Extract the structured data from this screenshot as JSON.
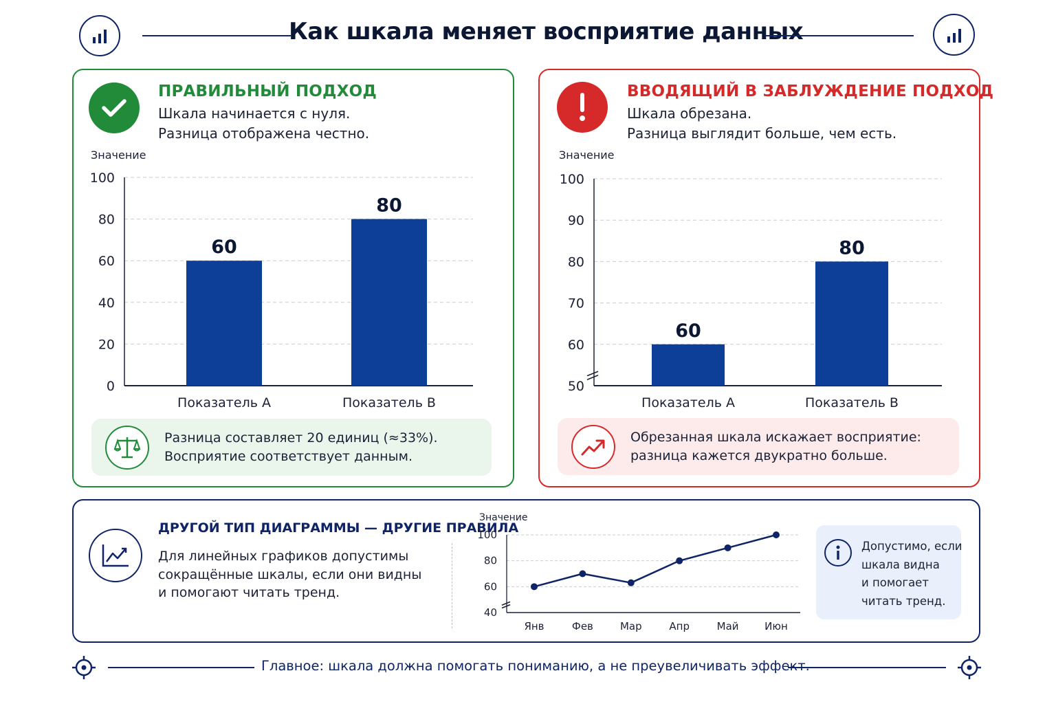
{
  "page": {
    "title": "Как шкала меняет восприятие данных",
    "footer": "Главное: шкала должна помогать пониманию, а не преувеличивать эффект."
  },
  "colors": {
    "navy": "#0e2466",
    "bar": "#0d3f98",
    "good": "#218b3a",
    "bad": "#d62a2a",
    "good_bg": "#eaf5eb",
    "bad_bg": "#fdebec",
    "info_bg": "#e9f0fb"
  },
  "icons": {
    "header": "bar-chart-icon",
    "good_badge": "checkmark-icon",
    "bad_badge": "exclamation-icon",
    "good_callout": "scales-icon",
    "bad_callout": "trend-up-icon",
    "bottom": "line-chart-icon",
    "info": "info-icon",
    "footer": "crosshair-icon"
  },
  "good_panel": {
    "heading": "ПРАВИЛЬНЫЙ ПОДХОД",
    "line1": "Шкала начинается с нуля.",
    "line2": "Разница отображена честно.",
    "callout_line1": "Разница составляет 20 единиц (≈33%).",
    "callout_line2": "Восприятие соответствует данным."
  },
  "bad_panel": {
    "heading": "ВВОДЯЩИЙ В ЗАБЛУЖДЕНИЕ ПОДХОД",
    "line1": "Шкала обрезана.",
    "line2": "Разница выглядит больше, чем есть.",
    "callout_line1": "Обрезанная шкала искажает восприятие:",
    "callout_line2": "разница кажется двукратно больше."
  },
  "bottom_panel": {
    "heading": "ДРУГОЙ ТИП ДИАГРАММЫ — ДРУГИЕ ПРАВИЛА",
    "line1": "Для линейных графиков допустимы",
    "line2": "сокращённые шкалы, если они видны",
    "line3": "и помогают читать тренд.",
    "info_line1": "Допустимо, если",
    "info_line2": "шкала видна",
    "info_line3": "и помогает",
    "info_line4": "читать тренд."
  },
  "chart_data": [
    {
      "type": "bar",
      "ylabel": "Значение",
      "categories": [
        "Показатель А",
        "Показатель В"
      ],
      "values": [
        60,
        80
      ],
      "ylim": [
        0,
        100
      ],
      "yticks": [
        0,
        20,
        40,
        60,
        80,
        100
      ],
      "grid": true,
      "axis_break": false
    },
    {
      "type": "bar",
      "ylabel": "Значение",
      "categories": [
        "Показатель А",
        "Показатель В"
      ],
      "values": [
        60,
        80
      ],
      "ylim": [
        50,
        100
      ],
      "yticks": [
        50,
        60,
        70,
        80,
        90,
        100
      ],
      "grid": true,
      "axis_break": true
    },
    {
      "type": "line",
      "ylabel": "Значение",
      "categories": [
        "Янв",
        "Фев",
        "Мар",
        "Апр",
        "Май",
        "Июн"
      ],
      "values": [
        60,
        70,
        63,
        80,
        90,
        100
      ],
      "ylim": [
        40,
        100
      ],
      "yticks": [
        40,
        60,
        80,
        100
      ],
      "grid": true,
      "axis_break": true
    }
  ]
}
